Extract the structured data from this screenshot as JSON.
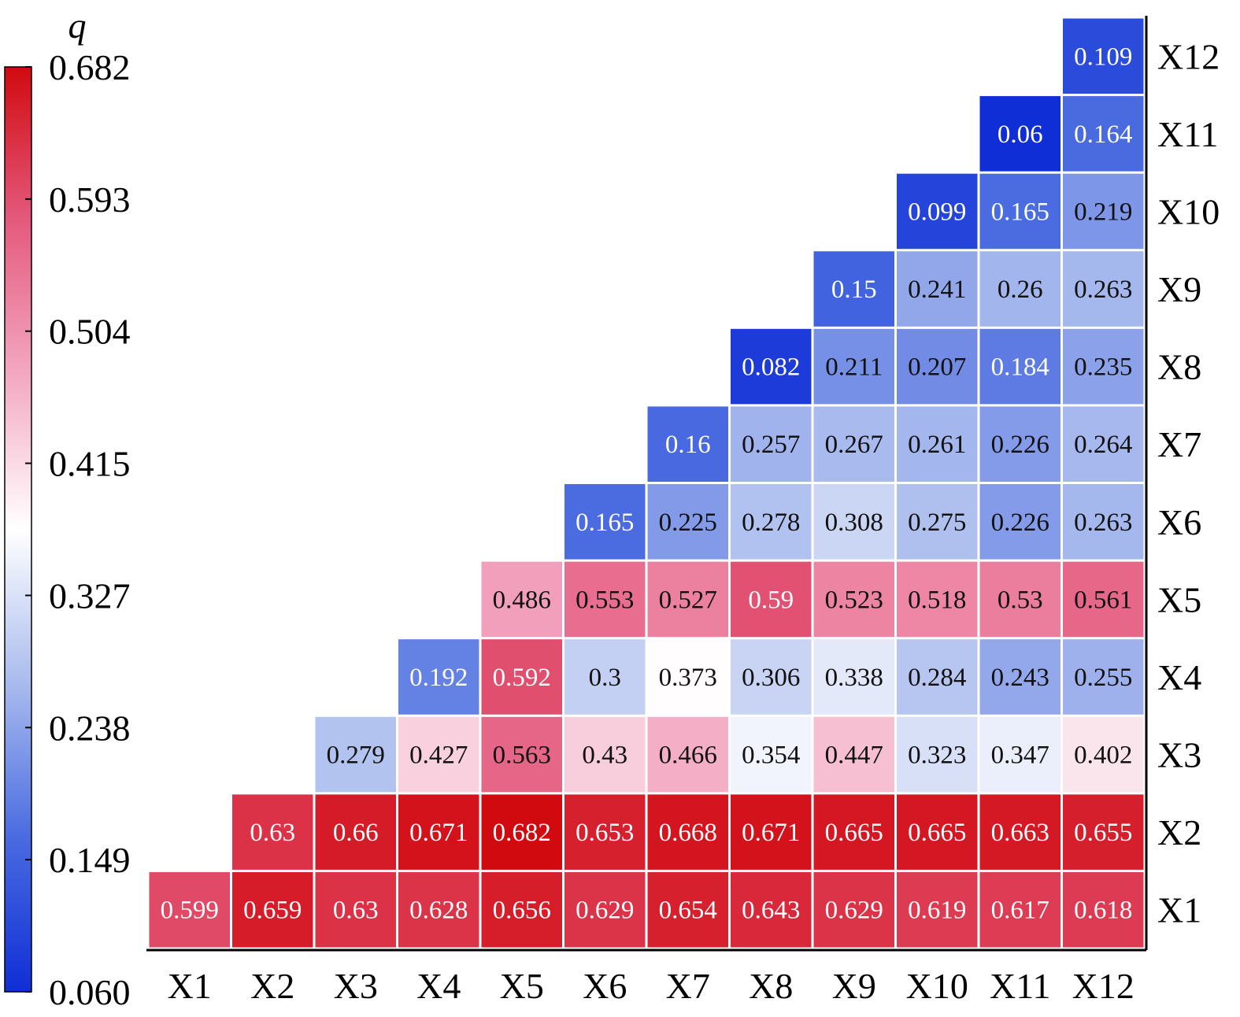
{
  "chart_data": {
    "type": "heatmap",
    "title": "",
    "x_categories": [
      "X1",
      "X2",
      "X3",
      "X4",
      "X5",
      "X6",
      "X7",
      "X8",
      "X9",
      "X10",
      "X11",
      "X12"
    ],
    "y_categories": [
      "X1",
      "X2",
      "X3",
      "X4",
      "X5",
      "X6",
      "X7",
      "X8",
      "X9",
      "X10",
      "X11",
      "X12"
    ],
    "layout": "lower-triangular (row index = y category, cells from X-row up to X12 column)",
    "rows": [
      {
        "y": "X1",
        "values": [
          0.599,
          0.659,
          0.63,
          0.628,
          0.656,
          0.629,
          0.654,
          0.643,
          0.629,
          0.619,
          0.617,
          0.618
        ]
      },
      {
        "y": "X2",
        "values": [
          0.63,
          0.66,
          0.671,
          0.682,
          0.653,
          0.668,
          0.671,
          0.665,
          0.665,
          0.663,
          0.655
        ]
      },
      {
        "y": "X3",
        "values": [
          0.279,
          0.427,
          0.563,
          0.43,
          0.466,
          0.354,
          0.447,
          0.323,
          0.347,
          0.402
        ]
      },
      {
        "y": "X4",
        "values": [
          0.192,
          0.592,
          0.3,
          0.373,
          0.306,
          0.338,
          0.284,
          0.243,
          0.255
        ]
      },
      {
        "y": "X5",
        "values": [
          0.486,
          0.553,
          0.527,
          0.59,
          0.523,
          0.518,
          0.53,
          0.561
        ]
      },
      {
        "y": "X6",
        "values": [
          0.165,
          0.225,
          0.278,
          0.308,
          0.275,
          0.226,
          0.263
        ]
      },
      {
        "y": "X7",
        "values": [
          0.16,
          0.257,
          0.267,
          0.261,
          0.226,
          0.264
        ]
      },
      {
        "y": "X8",
        "values": [
          0.082,
          0.211,
          0.207,
          0.184,
          0.235
        ]
      },
      {
        "y": "X9",
        "values": [
          0.15,
          0.241,
          0.26,
          0.263
        ]
      },
      {
        "y": "X10",
        "values": [
          0.099,
          0.165,
          0.219
        ]
      },
      {
        "y": "X11",
        "values": [
          0.06,
          0.164
        ]
      },
      {
        "y": "X12",
        "values": [
          0.109
        ]
      }
    ],
    "colorbar": {
      "label": "q",
      "min": 0.06,
      "max": 0.682,
      "ticks": [
        "0.060",
        "0.149",
        "0.238",
        "0.327",
        "0.415",
        "0.504",
        "0.593",
        "0.682"
      ],
      "colors": [
        "#0f2ed6",
        "#4a6be0",
        "#a9bbee",
        "#ffffff",
        "#f3a8c2",
        "#e45a7d",
        "#d10a10"
      ]
    },
    "legend_placement": "left",
    "grid": false
  }
}
